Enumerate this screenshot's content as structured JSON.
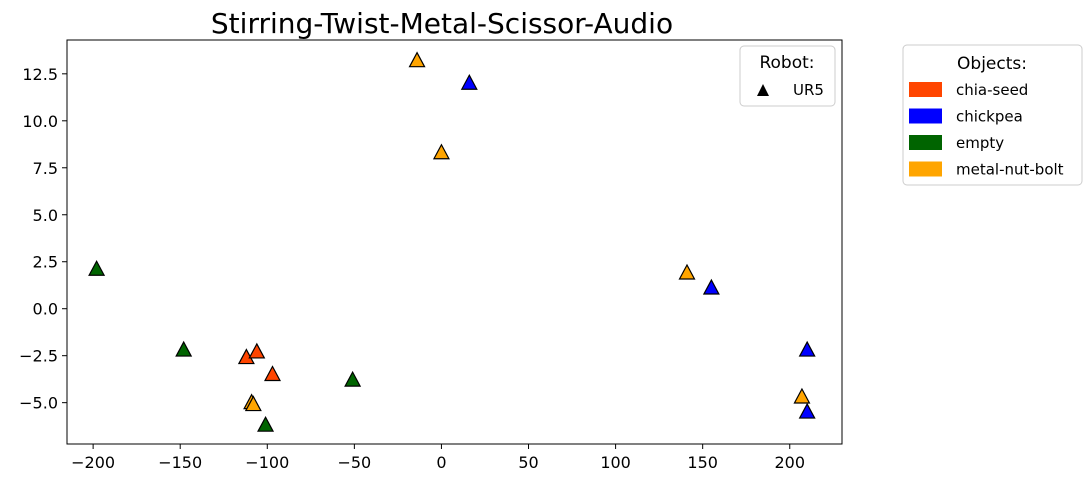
{
  "chart_data": {
    "type": "scatter",
    "title": "Stirring-Twist-Metal-Scissor-Audio",
    "xlabel": "",
    "ylabel": "",
    "xlim": [
      -215,
      230
    ],
    "ylim": [
      -7.2,
      14.3
    ],
    "xticks": [
      -200,
      -150,
      -100,
      -50,
      0,
      50,
      100,
      150,
      200
    ],
    "yticks": [
      -5.0,
      -2.5,
      0.0,
      2.5,
      5.0,
      7.5,
      10.0,
      12.5
    ],
    "xtick_labels": [
      "−200",
      "−150",
      "−100",
      "−50",
      "0",
      "50",
      "100",
      "150",
      "200"
    ],
    "ytick_labels": [
      "−5.0",
      "−2.5",
      "0.0",
      "2.5",
      "5.0",
      "7.5",
      "10.0",
      "12.5"
    ],
    "grid": false,
    "marker": "triangle",
    "series": [
      {
        "name": "chia-seed",
        "color": "#FF4500",
        "points": [
          [
            -112,
            -2.6
          ],
          [
            -106,
            -2.3
          ],
          [
            -97,
            -3.5
          ]
        ]
      },
      {
        "name": "chickpea",
        "color": "#0000FF",
        "points": [
          [
            16,
            12.0
          ],
          [
            155,
            1.1
          ],
          [
            210,
            -2.2
          ],
          [
            210,
            -5.5
          ]
        ]
      },
      {
        "name": "empty",
        "color": "#006400",
        "points": [
          [
            -198,
            2.1
          ],
          [
            -148,
            -2.2
          ],
          [
            -51,
            -3.8
          ],
          [
            -101,
            -6.2
          ]
        ]
      },
      {
        "name": "metal-nut-bolt",
        "color": "#FFA500",
        "points": [
          [
            -14,
            13.2
          ],
          [
            0,
            8.3
          ],
          [
            141,
            1.9
          ],
          [
            207,
            -4.7
          ],
          [
            -109,
            -5.0
          ],
          [
            -108,
            -5.1
          ]
        ]
      }
    ],
    "legends": [
      {
        "title": "Robot:",
        "placement": "top-right inside",
        "entries": [
          {
            "label": "UR5",
            "marker": "triangle",
            "color": "#000000"
          }
        ]
      },
      {
        "title": "Objects:",
        "placement": "outside right",
        "entries": [
          {
            "label": "chia-seed",
            "color": "#FF4500"
          },
          {
            "label": "chickpea",
            "color": "#0000FF"
          },
          {
            "label": "empty",
            "color": "#006400"
          },
          {
            "label": "metal-nut-bolt",
            "color": "#FFA500"
          }
        ]
      }
    ]
  }
}
